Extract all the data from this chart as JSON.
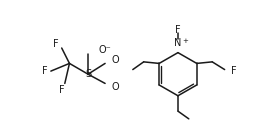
{
  "bg_color": "#ffffff",
  "line_color": "#1a1a1a",
  "line_width": 1.1,
  "font_size": 7.0,
  "font_color": "#1a1a1a",
  "figsize": [
    2.58,
    1.37
  ],
  "dpi": 100,
  "xlim": [
    0,
    258
  ],
  "ylim": [
    0,
    137
  ]
}
